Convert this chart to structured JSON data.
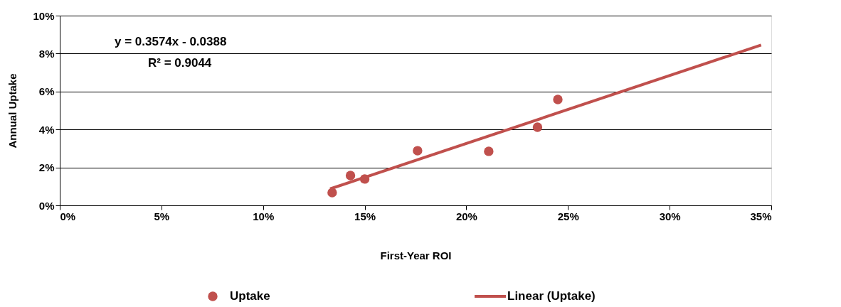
{
  "chart_data": {
    "type": "scatter",
    "xlabel": "First-Year ROI",
    "ylabel": "Annual Uptake",
    "xlim": [
      0,
      35
    ],
    "ylim": [
      0,
      10
    ],
    "xticks": [
      {
        "value": 0,
        "label": "0%"
      },
      {
        "value": 5,
        "label": "5%"
      },
      {
        "value": 10,
        "label": "10%"
      },
      {
        "value": 15,
        "label": "15%"
      },
      {
        "value": 20,
        "label": "20%"
      },
      {
        "value": 25,
        "label": "25%"
      },
      {
        "value": 30,
        "label": "30%"
      },
      {
        "value": 35,
        "label": "35%"
      }
    ],
    "yticks": [
      {
        "value": 0,
        "label": "0%"
      },
      {
        "value": 2,
        "label": "2%"
      },
      {
        "value": 4,
        "label": "4%"
      },
      {
        "value": 6,
        "label": "6%"
      },
      {
        "value": 8,
        "label": "8%"
      },
      {
        "value": 10,
        "label": "10%"
      }
    ],
    "grid": "y",
    "legend": "bottom",
    "marker": "circle",
    "annotations": [
      "y = 0.3574x - 0.0388",
      "R² = 0.9044"
    ],
    "series": [
      {
        "name": "Uptake",
        "color": "#c0504d",
        "x": [
          13.4,
          14.3,
          15.0,
          17.6,
          21.1,
          23.5,
          24.5
        ],
        "values": [
          0.67,
          1.57,
          1.39,
          2.88,
          2.85,
          4.12,
          5.58
        ]
      },
      {
        "name": "Linear (Uptake)",
        "type": "line",
        "color": "#c0504d",
        "line_style": "solid",
        "marker": "none",
        "x": [
          13.3,
          34.5
        ],
        "values": [
          0.87,
          8.45
        ]
      }
    ]
  }
}
